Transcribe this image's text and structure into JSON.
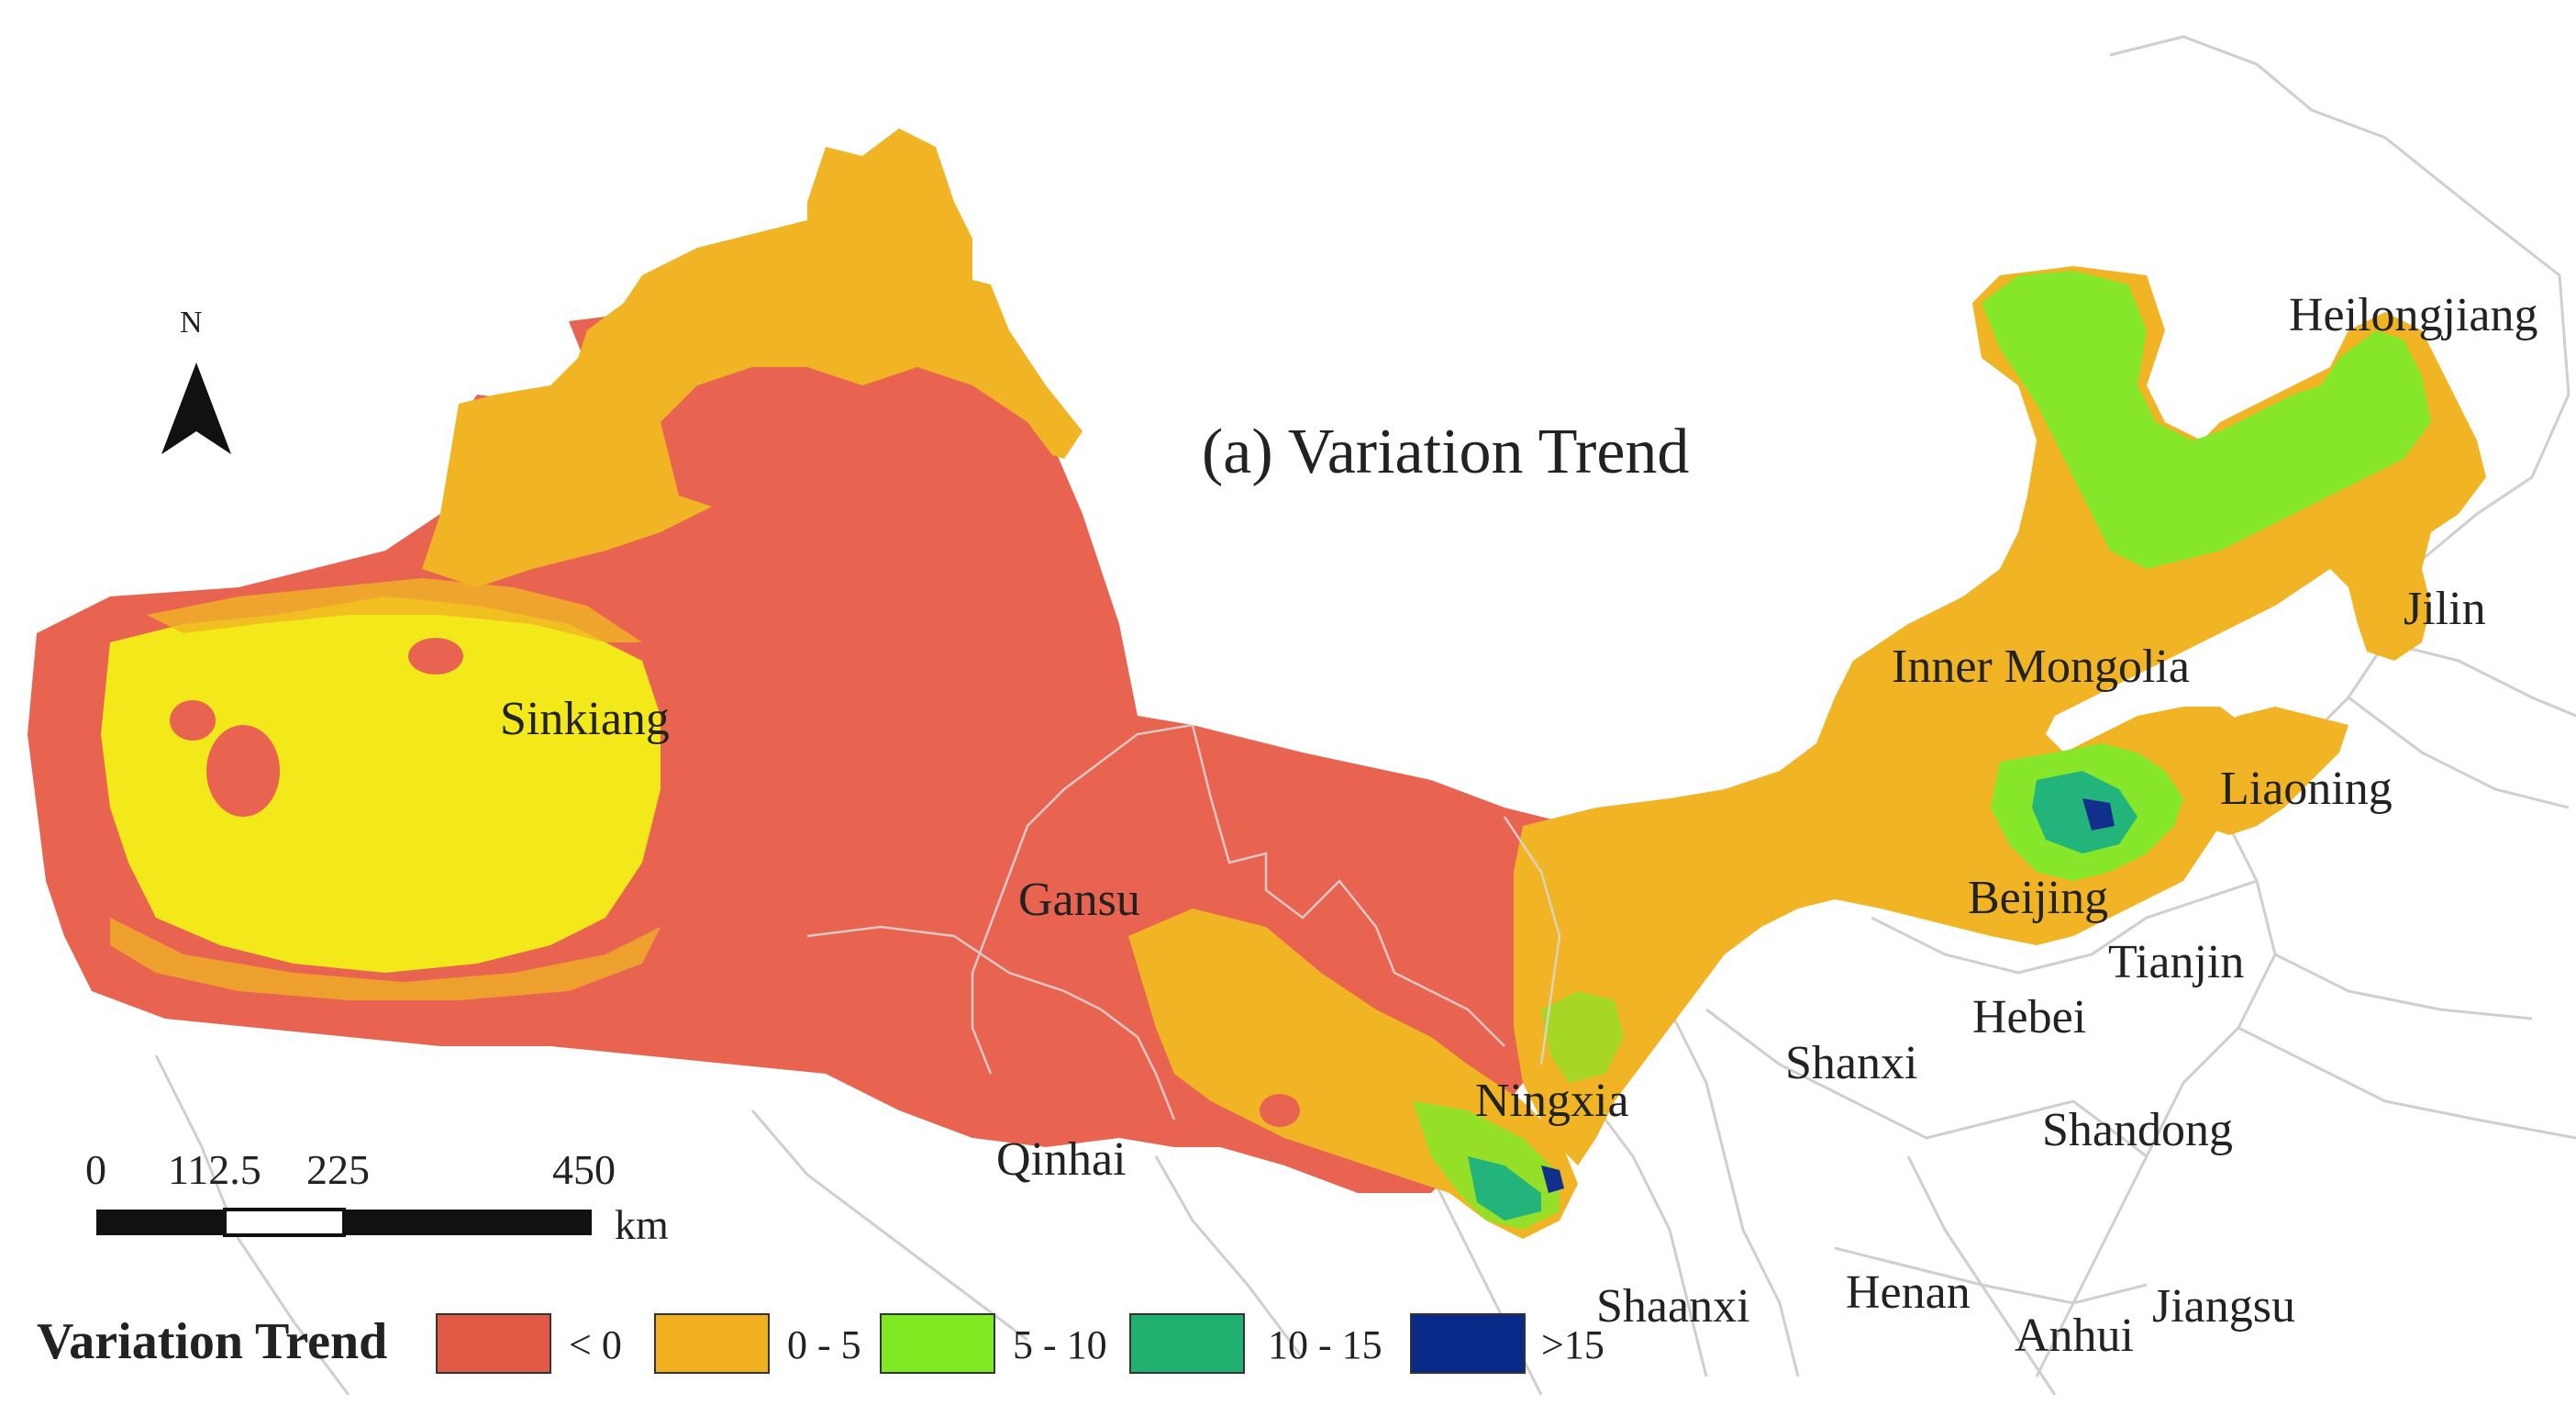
{
  "map": {
    "title": "(a) Variation Trend",
    "north_label": "N",
    "provinces": {
      "sinkiang": "Sinkiang",
      "gansu": "Gansu",
      "qinhai": "Qinhai",
      "ningxia": "Ningxia",
      "inner_mongolia": "Inner Mongolia",
      "heilongjiang": "Heilongjiang",
      "jilin": "Jilin",
      "liaoning": "Liaoning",
      "beijing": "Beijing",
      "tianjin": "Tianjin",
      "hebei": "Hebei",
      "shanxi": "Shanxi",
      "shandong": "Shandong",
      "shaanxi": "Shaanxi",
      "henan": "Henan",
      "anhui": "Anhui",
      "jiangsu": "Jiangsu"
    },
    "scale_bar": {
      "ticks": [
        "0",
        "112.5",
        "225",
        "450"
      ],
      "unit": "km"
    },
    "legend": {
      "title": "Variation Trend",
      "items": [
        {
          "label": "< 0",
          "color": "#e05a45"
        },
        {
          "label": "0 - 5",
          "color": "#f0b020"
        },
        {
          "label": "5 - 10",
          "color": "#7ee820"
        },
        {
          "label": "10 - 15",
          "color": "#20b070"
        },
        {
          "label": ">15",
          "color": "#0a2a8a"
        }
      ]
    },
    "colors": {
      "negative": "#e86450",
      "low": "#f0b424",
      "yellow": "#f2e81a",
      "green": "#86e62a",
      "teal": "#22b47a",
      "navy": "#10308c",
      "boundary": "#c9c9c9"
    }
  }
}
